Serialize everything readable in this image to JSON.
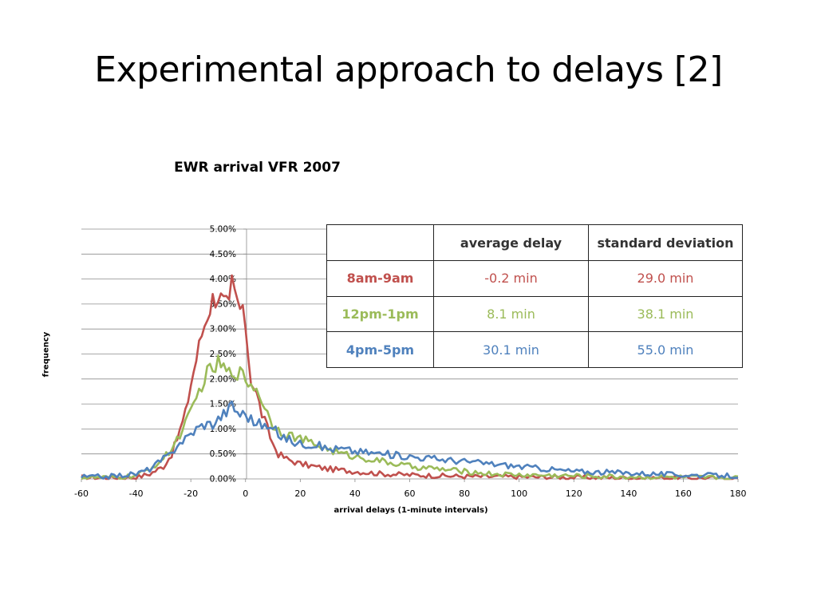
{
  "slide": {
    "title": "Experimental approach to delays [2]"
  },
  "colors": {
    "morning": "#c0504d",
    "noon": "#9bbb59",
    "evening": "#4f81bd"
  },
  "stats_table": {
    "headers": [
      "",
      "average delay",
      "standard deviation"
    ],
    "rows": [
      {
        "period": "8am-9am",
        "average": "-0.2 min",
        "std": "29.0 min",
        "color": "#c0504d"
      },
      {
        "period": "12pm-1pm",
        "average": "8.1 min",
        "std": "38.1 min",
        "color": "#9bbb59"
      },
      {
        "period": "4pm-5pm",
        "average": "30.1 min",
        "std": "55.0 min",
        "color": "#4f81bd"
      }
    ]
  },
  "chart_data": {
    "type": "line",
    "title": "EWR arrival VFR 2007",
    "xlabel": "arrival delays (1-minute intervals)",
    "ylabel": "frequency",
    "xlim": [
      -60,
      180
    ],
    "ylim": [
      0,
      0.05
    ],
    "x_ticks": [
      "-60",
      "-40",
      "-20",
      "0",
      "20",
      "40",
      "60",
      "80",
      "100",
      "120",
      "140",
      "160",
      "180"
    ],
    "y_ticks": [
      "0.00%",
      "0.50%",
      "1.00%",
      "1.50%",
      "2.00%",
      "2.50%",
      "3.00%",
      "3.50%",
      "4.00%",
      "4.50%",
      "5.00%"
    ],
    "grid": "horizontal",
    "series": [
      {
        "name": "8am-9am",
        "color": "#c0504d",
        "points": [
          [
            -60,
            0.0003
          ],
          [
            -50,
            0.0002
          ],
          [
            -40,
            0.0003
          ],
          [
            -35,
            0.001
          ],
          [
            -30,
            0.0025
          ],
          [
            -27,
            0.005
          ],
          [
            -25,
            0.008
          ],
          [
            -22,
            0.013
          ],
          [
            -20,
            0.019
          ],
          [
            -18,
            0.024
          ],
          [
            -16,
            0.029
          ],
          [
            -14,
            0.033
          ],
          [
            -12,
            0.036
          ],
          [
            -10,
            0.037
          ],
          [
            -8,
            0.035
          ],
          [
            -6,
            0.034
          ],
          [
            -5,
            0.039
          ],
          [
            -4,
            0.037
          ],
          [
            -2,
            0.034
          ],
          [
            0,
            0.031
          ],
          [
            1,
            0.025
          ],
          [
            2,
            0.02
          ],
          [
            4,
            0.017
          ],
          [
            6,
            0.013
          ],
          [
            8,
            0.01
          ],
          [
            10,
            0.007
          ],
          [
            12,
            0.005
          ],
          [
            15,
            0.004
          ],
          [
            20,
            0.003
          ],
          [
            25,
            0.0025
          ],
          [
            30,
            0.002
          ],
          [
            40,
            0.0015
          ],
          [
            50,
            0.001
          ],
          [
            60,
            0.0008
          ],
          [
            80,
            0.0005
          ],
          [
            100,
            0.0004
          ],
          [
            120,
            0.0003
          ],
          [
            140,
            0.0002
          ],
          [
            160,
            0.0002
          ],
          [
            180,
            0.0001
          ]
        ]
      },
      {
        "name": "12pm-1pm",
        "color": "#9bbb59",
        "points": [
          [
            -60,
            0.0003
          ],
          [
            -50,
            0.0002
          ],
          [
            -40,
            0.0006
          ],
          [
            -35,
            0.002
          ],
          [
            -30,
            0.004
          ],
          [
            -27,
            0.006
          ],
          [
            -25,
            0.008
          ],
          [
            -22,
            0.011
          ],
          [
            -20,
            0.013
          ],
          [
            -18,
            0.016
          ],
          [
            -16,
            0.019
          ],
          [
            -14,
            0.021
          ],
          [
            -12,
            0.022
          ],
          [
            -10,
            0.023
          ],
          [
            -8,
            0.022
          ],
          [
            -6,
            0.021
          ],
          [
            -4,
            0.022
          ],
          [
            -2,
            0.021
          ],
          [
            0,
            0.02
          ],
          [
            2,
            0.019
          ],
          [
            4,
            0.018
          ],
          [
            6,
            0.016
          ],
          [
            8,
            0.013
          ],
          [
            10,
            0.011
          ],
          [
            12,
            0.01
          ],
          [
            15,
            0.009
          ],
          [
            20,
            0.008
          ],
          [
            25,
            0.007
          ],
          [
            30,
            0.006
          ],
          [
            35,
            0.005
          ],
          [
            40,
            0.0045
          ],
          [
            50,
            0.0035
          ],
          [
            60,
            0.0025
          ],
          [
            70,
            0.002
          ],
          [
            80,
            0.0015
          ],
          [
            90,
            0.001
          ],
          [
            100,
            0.0008
          ],
          [
            120,
            0.0006
          ],
          [
            140,
            0.0004
          ],
          [
            160,
            0.0003
          ],
          [
            180,
            0.0002
          ]
        ]
      },
      {
        "name": "4pm-5pm",
        "color": "#4f81bd",
        "points": [
          [
            -60,
            0.0004
          ],
          [
            -50,
            0.0005
          ],
          [
            -40,
            0.001
          ],
          [
            -35,
            0.002
          ],
          [
            -30,
            0.004
          ],
          [
            -27,
            0.005
          ],
          [
            -25,
            0.007
          ],
          [
            -22,
            0.008
          ],
          [
            -20,
            0.009
          ],
          [
            -18,
            0.01
          ],
          [
            -15,
            0.011
          ],
          [
            -12,
            0.011
          ],
          [
            -10,
            0.012
          ],
          [
            -8,
            0.013
          ],
          [
            -6,
            0.014
          ],
          [
            -5,
            0.015
          ],
          [
            -4,
            0.014
          ],
          [
            -2,
            0.013
          ],
          [
            0,
            0.013
          ],
          [
            2,
            0.012
          ],
          [
            4,
            0.011
          ],
          [
            6,
            0.011
          ],
          [
            8,
            0.01
          ],
          [
            10,
            0.01
          ],
          [
            12,
            0.009
          ],
          [
            15,
            0.008
          ],
          [
            20,
            0.007
          ],
          [
            25,
            0.007
          ],
          [
            30,
            0.006
          ],
          [
            35,
            0.006
          ],
          [
            40,
            0.0055
          ],
          [
            50,
            0.005
          ],
          [
            60,
            0.0045
          ],
          [
            70,
            0.004
          ],
          [
            80,
            0.0035
          ],
          [
            90,
            0.003
          ],
          [
            100,
            0.0025
          ],
          [
            110,
            0.002
          ],
          [
            120,
            0.0015
          ],
          [
            140,
            0.0012
          ],
          [
            160,
            0.0008
          ],
          [
            180,
            0.0006
          ]
        ]
      }
    ]
  }
}
